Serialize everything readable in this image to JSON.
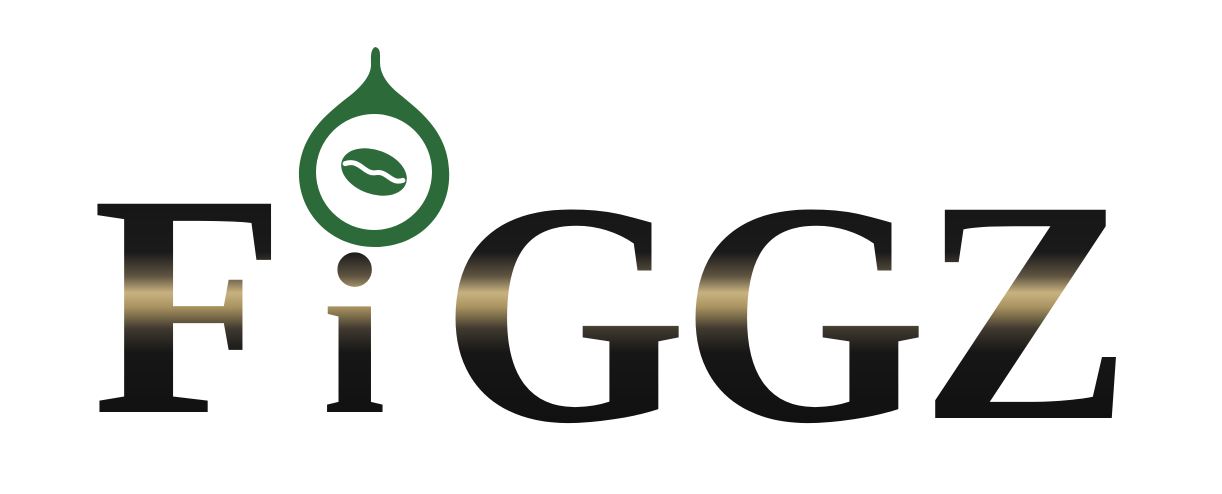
{
  "logo": {
    "wordmark": "FiGGZ",
    "letters": [
      "F",
      "i",
      "G",
      "G",
      "Z"
    ],
    "icon": "coffee-bean-drop-icon"
  },
  "colors": {
    "background": "#ffffff",
    "letter_dark": "#161616",
    "letter_gold": "#b8a06d",
    "drop_green": "#2d6a3a",
    "bean_green": "#2e6b3b",
    "drop_inner": "#ffffff"
  }
}
